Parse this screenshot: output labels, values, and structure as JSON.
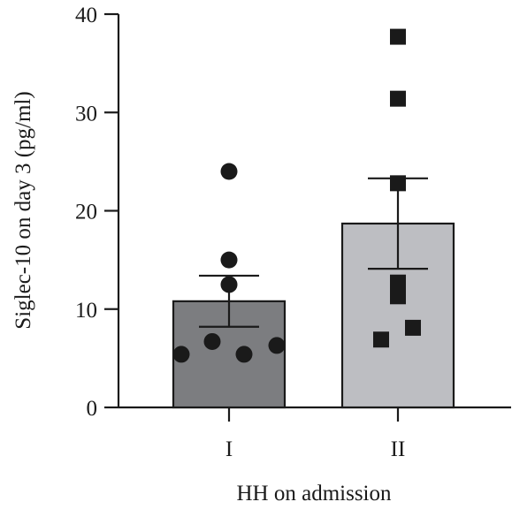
{
  "chart_data": {
    "type": "bar",
    "title": "",
    "xlabel": "HH on admission",
    "ylabel": "Siglec-10 on day 3 (pg/ml)",
    "ylim": [
      0,
      40
    ],
    "yticks": [
      0,
      10,
      20,
      30,
      40
    ],
    "grid": false,
    "categories": [
      "I",
      "II"
    ],
    "values": [
      10.8,
      18.7
    ],
    "error_sem": [
      2.6,
      4.6
    ],
    "bar_colors": [
      "#7c7d80",
      "#bdbec2"
    ],
    "points": [
      {
        "category": "I",
        "marker": "circle",
        "values": [
          24.0,
          15.0,
          12.5,
          6.7,
          5.4,
          5.4,
          6.3
        ]
      },
      {
        "category": "II",
        "marker": "square",
        "values": [
          37.7,
          31.4,
          22.8,
          12.7,
          11.3,
          6.9,
          8.1
        ]
      }
    ]
  }
}
